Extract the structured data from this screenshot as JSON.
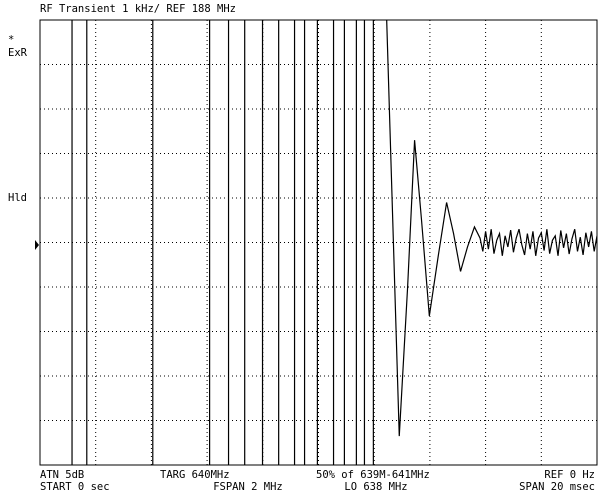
{
  "chart_data": {
    "type": "line",
    "title": "RF Transient  1 kHz/ REF 188 MHz",
    "side_labels": [
      "*",
      "ExR",
      "Hld"
    ],
    "footer": {
      "left_top": "ATN 5dB",
      "left_bottom": "START 0 sec",
      "mid1_top": "TARG 640MHz",
      "mid1_bottom": "FSPAN 2 MHz",
      "mid2_top": "50% of 639M-641MHz",
      "mid2_bottom": "LO 638 MHz",
      "right_top": "REF 0 Hz",
      "right_bottom": "SPAN 20 msec"
    },
    "xlim": [
      0,
      20
    ],
    "xticks": [
      0,
      2,
      4,
      6,
      8,
      10,
      12,
      14,
      16,
      18,
      20
    ],
    "ylim": [
      -5,
      5
    ],
    "yticks": [
      -5,
      -4,
      -3,
      -2,
      -1,
      0,
      1,
      2,
      3,
      4,
      5
    ],
    "grid": true,
    "x": [
      1.15,
      1.15,
      1.68,
      1.68,
      4.05,
      4.05,
      6.09,
      6.09,
      6.77,
      6.77,
      7.35,
      7.35,
      7.99,
      7.99,
      8.57,
      8.57,
      9.14,
      9.14,
      9.5,
      9.5,
      9.96,
      9.96,
      10.54,
      10.54,
      10.93,
      10.93,
      11.36,
      11.36,
      11.65,
      11.65,
      11.97,
      11.97,
      12.4,
      12.9,
      13.2,
      13.45,
      13.7,
      13.98,
      14.3,
      14.6,
      14.85,
      15.1,
      15.35,
      15.6,
      15.8,
      15.9,
      16.0,
      16.1,
      16.2,
      16.3,
      16.4,
      16.5,
      16.6,
      16.7,
      16.8,
      16.9,
      17.0,
      17.1,
      17.2,
      17.3,
      17.4,
      17.5,
      17.6,
      17.7,
      17.8,
      17.9,
      18.0,
      18.1,
      18.2,
      18.3,
      18.4,
      18.5,
      18.6,
      18.7,
      18.8,
      18.9,
      19.0,
      19.1,
      19.2,
      19.3,
      19.4,
      19.5,
      19.6,
      19.7,
      19.8,
      19.9,
      20.0
    ],
    "series": [
      {
        "color": "#000000",
        "values": [
          6,
          -6,
          -6,
          6,
          6,
          -6,
          -6,
          6,
          6,
          -6,
          -6,
          6,
          6,
          -6,
          -6,
          6,
          6,
          -6,
          -6,
          6,
          6,
          -6,
          -6,
          6,
          6,
          -6,
          -6,
          6,
          6,
          -6,
          -6,
          6,
          6,
          -4.35,
          -1,
          2.3,
          0.5,
          -1.65,
          -0.3,
          0.9,
          0.2,
          -0.65,
          -0.1,
          0.35,
          0.1,
          -0.2,
          0.25,
          -0.15,
          0.3,
          -0.25,
          0.05,
          0.2,
          -0.3,
          0.15,
          -0.1,
          0.28,
          -0.22,
          0.1,
          0.3,
          -0.05,
          -0.28,
          0.2,
          -0.15,
          0.25,
          -0.3,
          0.1,
          0.22,
          -0.18,
          0.3,
          -0.25,
          0.05,
          0.15,
          -0.3,
          0.27,
          -0.12,
          0.2,
          -0.26,
          0.08,
          0.3,
          -0.2,
          0.12,
          -0.28,
          0.22,
          -0.1,
          0.25,
          -0.2,
          0.15
        ]
      }
    ]
  }
}
